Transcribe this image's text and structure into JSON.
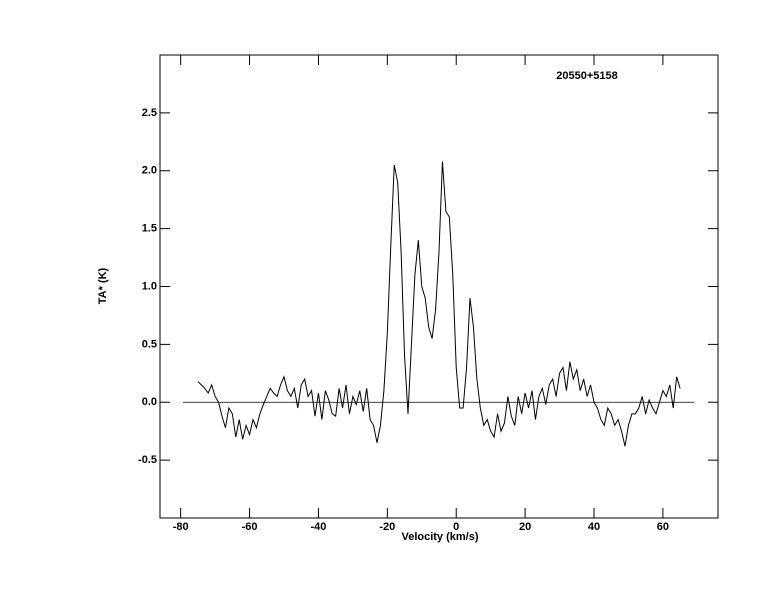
{
  "chart_data": {
    "type": "line",
    "title": "20550+5158",
    "xlabel": "Velocity (km/s)",
    "ylabel": "TA* (K)",
    "color": "#000000",
    "zero_line": true,
    "xlim": [
      -86,
      76
    ],
    "ylim": [
      -1.0,
      3.0
    ],
    "xticks": [
      -80,
      -60,
      -40,
      -20,
      0,
      20,
      40,
      60
    ],
    "yticks": [
      -0.5,
      {
        "value": 0,
        "label": "0.0"
      },
      0.5,
      {
        "value": 1,
        "label": "1.0"
      },
      1.5,
      {
        "value": 2,
        "label": "2.0"
      },
      2.5
    ],
    "x": [
      -75,
      -74,
      -73,
      -72,
      -71,
      -70,
      -69,
      -68,
      -67,
      -66,
      -65,
      -64,
      -63,
      -62,
      -61,
      -60,
      -59,
      -58,
      -57,
      -56,
      -55,
      -54,
      -53,
      -52,
      -51,
      -50,
      -49,
      -48,
      -47,
      -46,
      -45,
      -44,
      -43,
      -42,
      -41,
      -40,
      -39,
      -38,
      -37,
      -36,
      -35,
      -34,
      -33,
      -32,
      -31,
      -30,
      -29,
      -28,
      -27,
      -26,
      -25,
      -24,
      -23,
      -22,
      -21,
      -20,
      -19,
      -18,
      -17,
      -16,
      -15,
      -14,
      -13,
      -12,
      -11,
      -10,
      -9,
      -8,
      -7,
      -6,
      -5,
      -4,
      -3,
      -2,
      -1,
      0,
      1,
      2,
      3,
      4,
      5,
      6,
      7,
      8,
      9,
      10,
      11,
      12,
      13,
      14,
      15,
      16,
      17,
      18,
      19,
      20,
      21,
      22,
      23,
      24,
      25,
      26,
      27,
      28,
      29,
      30,
      31,
      32,
      33,
      34,
      35,
      36,
      37,
      38,
      39,
      40,
      41,
      42,
      43,
      44,
      45,
      46,
      47,
      48,
      49,
      50,
      51,
      52,
      53,
      54,
      55,
      56,
      57,
      58,
      59,
      60,
      61,
      62,
      63,
      64,
      65
    ],
    "values": [
      0.18,
      0.15,
      0.12,
      0.08,
      0.15,
      0.05,
      0.0,
      -0.12,
      -0.22,
      -0.05,
      -0.1,
      -0.3,
      -0.15,
      -0.32,
      -0.2,
      -0.28,
      -0.15,
      -0.22,
      -0.1,
      -0.02,
      0.05,
      0.12,
      0.08,
      0.05,
      0.15,
      0.22,
      0.1,
      0.05,
      0.12,
      -0.05,
      0.15,
      0.2,
      0.05,
      0.1,
      -0.12,
      0.08,
      -0.15,
      0.1,
      0.02,
      -0.1,
      -0.12,
      0.12,
      -0.05,
      0.15,
      -0.1,
      0.05,
      -0.02,
      0.1,
      -0.08,
      0.12,
      -0.15,
      -0.2,
      -0.35,
      -0.2,
      0.1,
      0.6,
      1.35,
      2.05,
      1.9,
      1.3,
      0.4,
      -0.1,
      0.5,
      1.1,
      1.4,
      1.0,
      0.9,
      0.65,
      0.55,
      0.8,
      1.3,
      2.08,
      1.65,
      1.6,
      1.1,
      0.3,
      -0.05,
      -0.05,
      0.3,
      0.9,
      0.65,
      0.2,
      -0.05,
      -0.2,
      -0.15,
      -0.25,
      -0.3,
      -0.1,
      -0.25,
      -0.18,
      0.05,
      -0.12,
      -0.2,
      0.05,
      -0.1,
      0.08,
      -0.05,
      0.1,
      -0.15,
      0.05,
      0.12,
      -0.02,
      0.15,
      0.2,
      0.05,
      0.25,
      0.3,
      0.1,
      0.35,
      0.2,
      0.28,
      0.1,
      0.2,
      0.05,
      0.15,
      0.0,
      -0.05,
      -0.15,
      -0.2,
      -0.05,
      -0.1,
      -0.2,
      -0.15,
      -0.25,
      -0.38,
      -0.2,
      -0.1,
      -0.1,
      -0.05,
      0.05,
      -0.1,
      0.02,
      -0.05,
      -0.1,
      0.0,
      0.1,
      0.05,
      0.15,
      -0.05,
      0.22,
      0.12
    ]
  }
}
